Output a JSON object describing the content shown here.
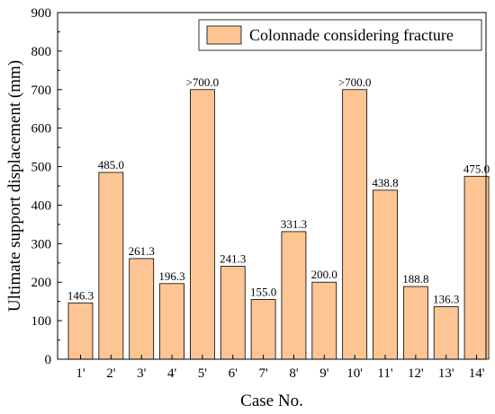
{
  "chart_data": {
    "type": "bar",
    "xlabel": "Case No.",
    "ylabel": "Ultimate support displacement (mm)",
    "ylim": [
      0,
      900
    ],
    "yticks": [
      0,
      100,
      200,
      300,
      400,
      500,
      600,
      700,
      800,
      900
    ],
    "categories": [
      "1'",
      "2'",
      "3'",
      "4'",
      "5'",
      "6'",
      "7'",
      "8'",
      "9'",
      "10'",
      "11'",
      "12'",
      "13'",
      "14'"
    ],
    "series": [
      {
        "name": "Colonnade considering fracture",
        "values": [
          146.3,
          485.0,
          261.3,
          196.3,
          700.0,
          241.3,
          155.0,
          331.3,
          200.0,
          700.0,
          438.8,
          188.8,
          136.3,
          475.0
        ],
        "labels": [
          "146.3",
          "485.0",
          "261.3",
          "196.3",
          ">700.0",
          "241.3",
          "155.0",
          "331.3",
          "200.0",
          ">700.0",
          "438.8",
          "188.8",
          "136.3",
          "475.0"
        ]
      }
    ],
    "legend_position": "top-right",
    "grid": false,
    "colors": {
      "bar_fill": "#FDC593",
      "bar_stroke": "#000000"
    }
  }
}
